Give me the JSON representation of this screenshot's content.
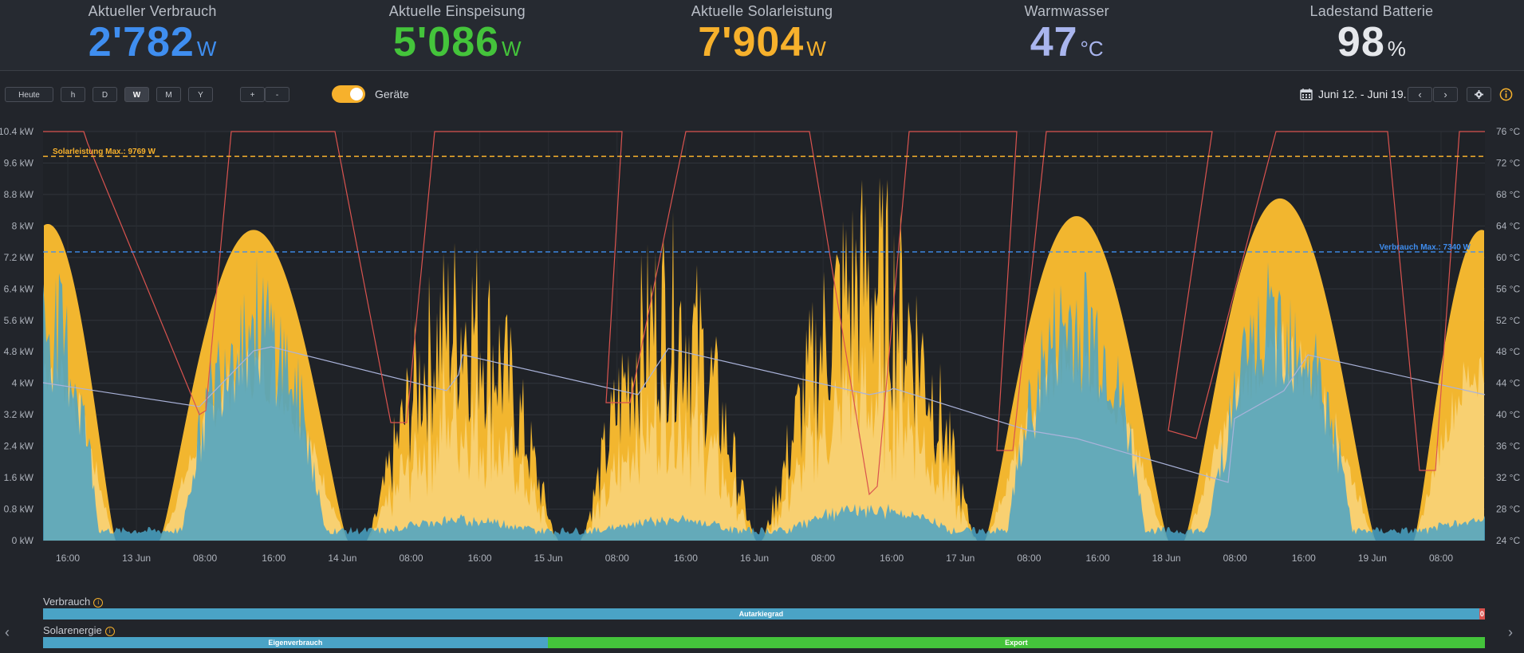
{
  "stats": [
    {
      "label": "Aktueller Verbrauch",
      "value": "2'782",
      "unit": "W",
      "color": "#3f8ef0"
    },
    {
      "label": "Aktuelle Einspeisung",
      "value": "5'086",
      "unit": "W",
      "color": "#44c43b"
    },
    {
      "label": "Aktuelle Solarleistung",
      "value": "7'904",
      "unit": "W",
      "color": "#f7b12c"
    },
    {
      "label": "Warmwasser",
      "value": "47",
      "unit": "°C",
      "color": "#a9b5ee"
    },
    {
      "label": "Ladestand Batterie",
      "value": "98",
      "unit": "%",
      "color": "#e6e8ec"
    }
  ],
  "toolbar": {
    "range_buttons": [
      "Heute",
      "h",
      "D",
      "W",
      "M",
      "Y"
    ],
    "active_range": "W",
    "zoom_in": "+",
    "zoom_out": "-",
    "toggle_label": "Geräte",
    "toggle_on": true,
    "date_range": "Juni 12. - Juni 19.",
    "prev": "‹",
    "next": "›",
    "settings_icon": "gear-icon",
    "info_icon": "info-icon",
    "calendar_icon": "calendar-icon"
  },
  "chart_data": {
    "type": "area",
    "y_left_ticks": [
      "0 kW",
      "0.8 kW",
      "1.6 kW",
      "2.4 kW",
      "3.2 kW",
      "4 kW",
      "4.8 kW",
      "5.6 kW",
      "6.4 kW",
      "7.2 kW",
      "8 kW",
      "8.8 kW",
      "9.6 kW",
      "10.4 kW"
    ],
    "y_right_ticks": [
      "24 °C",
      "28 °C",
      "32 °C",
      "36 °C",
      "40 °C",
      "44 °C",
      "48 °C",
      "52 °C",
      "56 °C",
      "60 °C",
      "64 °C",
      "68 °C",
      "72 °C",
      "76 °C"
    ],
    "x_ticks": [
      "16:00",
      "13 Jun",
      "08:00",
      "16:00",
      "14 Jun",
      "08:00",
      "16:00",
      "15 Jun",
      "08:00",
      "16:00",
      "16 Jun",
      "08:00",
      "16:00",
      "17 Jun",
      "08:00",
      "16:00",
      "18 Jun",
      "08:00",
      "16:00",
      "19 Jun",
      "08:00"
    ],
    "ylim_kw": [
      0,
      10.4
    ],
    "ylim_temp": [
      24,
      76
    ],
    "annotations": [
      {
        "text": "Solarleistung Max.: 9769 W",
        "value_kw": 9.769,
        "color": "#f7b12c"
      },
      {
        "text": "Verbrauch Max.: 7340 W",
        "value_kw": 7.34,
        "color": "#3f8ef0"
      }
    ],
    "series_colors": {
      "solar": "#f9bb2f",
      "solar_light": "#fde6a8",
      "consumption": "#4aa3c6",
      "temperature": "#d9534f",
      "battery": "#aab3da"
    },
    "solar_days": [
      {
        "peak_kw": 8.05
      },
      {
        "peak_kw": 7.9
      },
      {
        "peak_kw": 8.2
      },
      {
        "peak_kw": 8.4
      },
      {
        "peak_kw": 9.7
      },
      {
        "peak_kw": 8.25
      },
      {
        "peak_kw": 8.7
      },
      {
        "peak_kw": 7.9
      }
    ]
  },
  "bars": {
    "verbrauch_label": "Verbrauch",
    "autarkie_label": "Autarkiegrad",
    "autarkie_pct": 99.6,
    "autarkie_color": "#4aa3c6",
    "grid_color": "#d9534f",
    "grid_label": "0",
    "solar_label": "Solarenergie",
    "eigen_label": "Eigenverbrauch",
    "eigen_pct": 35,
    "eigen_color": "#4aa3c6",
    "export_label": "Export",
    "export_color": "#44c43b"
  }
}
